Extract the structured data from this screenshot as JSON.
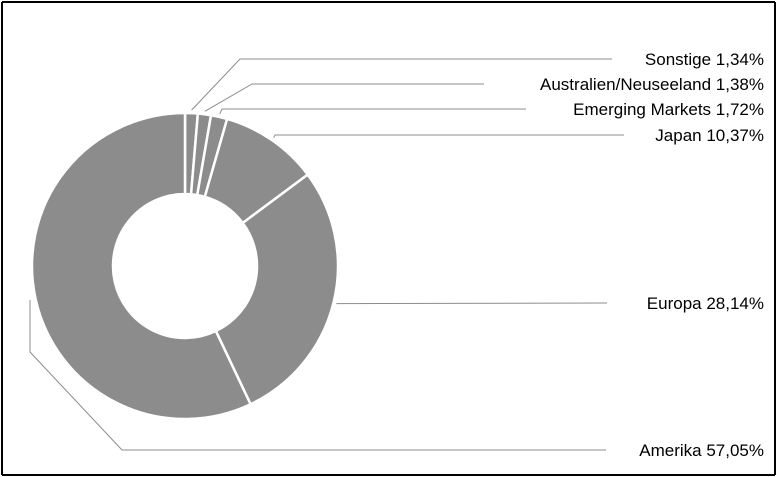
{
  "chart_data": {
    "type": "pie",
    "style": "donut",
    "title": "",
    "slice_color": "#8c8c8c",
    "slice_border_color": "#ffffff",
    "background_color": "#ffffff",
    "frame_color": "#000000",
    "leader_color": "#8c8c8c",
    "label_color": "#000000",
    "start_angle_deg": 0,
    "direction": "clockwise",
    "slices": [
      {
        "name": "Sonstige",
        "value": 1.34,
        "label": "Sonstige 1,34%"
      },
      {
        "name": "Australien/Neuseeland",
        "value": 1.38,
        "label": "Australien/Neuseeland 1,38%"
      },
      {
        "name": "Emerging Markets",
        "value": 1.72,
        "label": "Emerging Markets 1,72%"
      },
      {
        "name": "Japan",
        "value": 10.37,
        "label": "Japan 10,37%"
      },
      {
        "name": "Europa",
        "value": 28.14,
        "label": "Europa 28,14%"
      },
      {
        "name": "Amerika",
        "value": 57.05,
        "label": "Amerika 57,05%"
      }
    ]
  }
}
